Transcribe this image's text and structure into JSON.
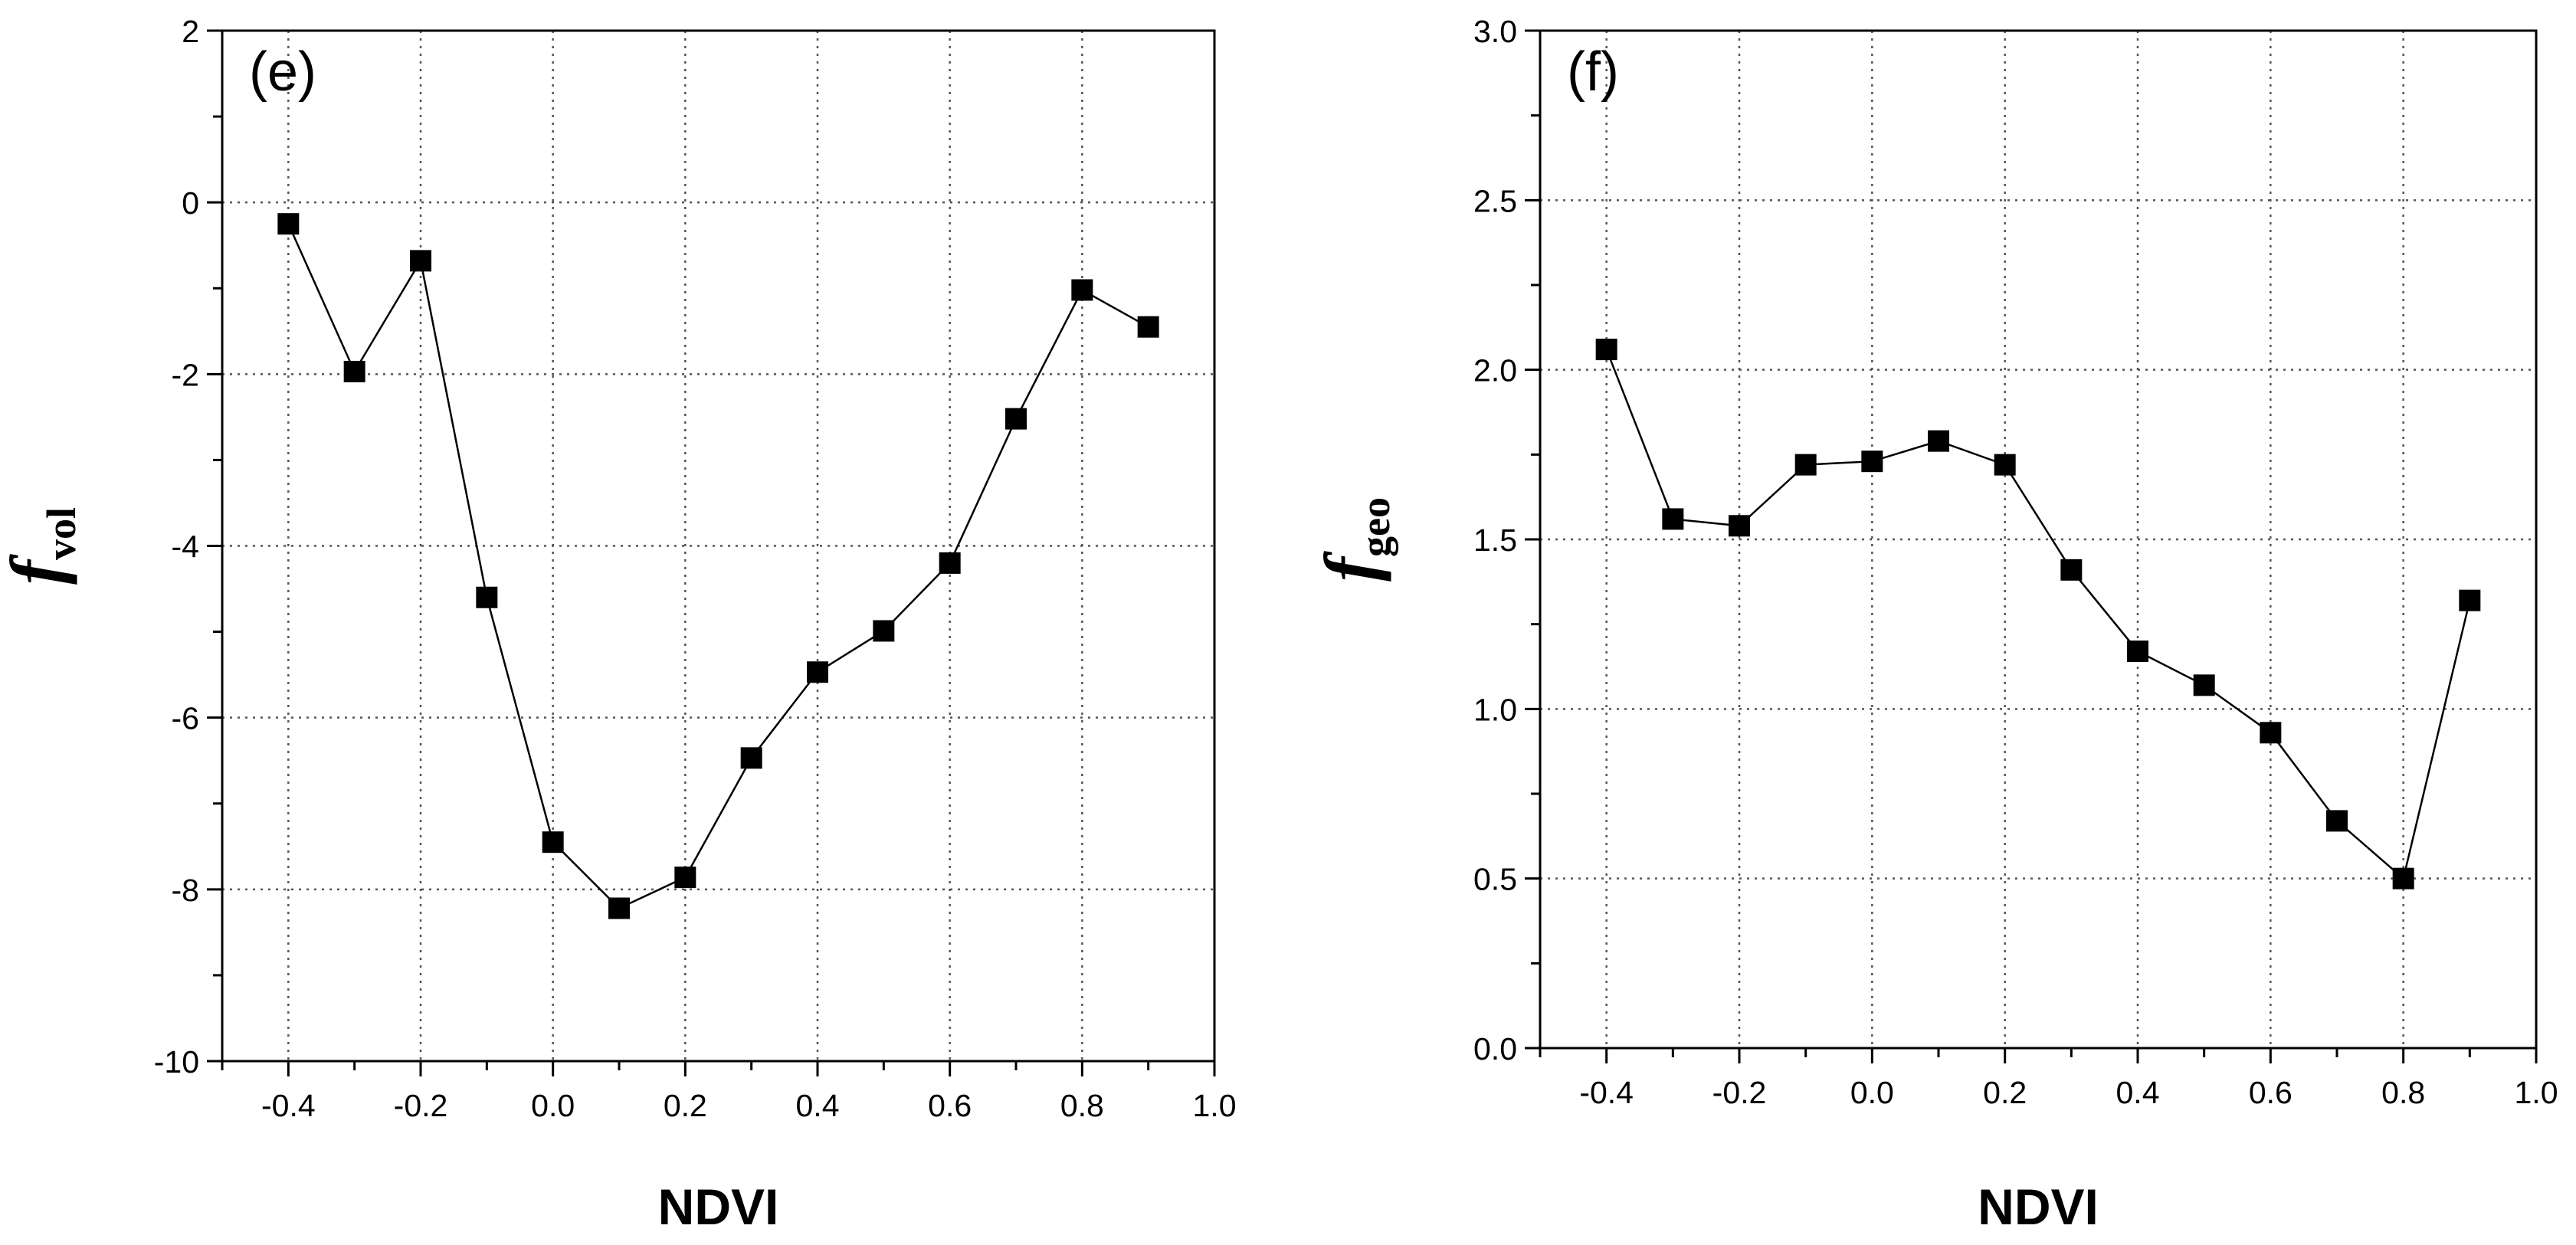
{
  "chart_data": [
    {
      "type": "line",
      "panel_label": "(e)",
      "xlabel": "NDVI",
      "ylabel": "f",
      "ylabel_sub": "vol",
      "xlim": [
        -0.5,
        1.0
      ],
      "ylim": [
        -10,
        2
      ],
      "xticks": [
        -0.4,
        -0.2,
        0.0,
        0.2,
        0.4,
        0.6,
        0.8,
        1.0
      ],
      "xtick_labels": [
        "-0.4",
        "-0.2",
        "0.0",
        "0.2",
        "0.4",
        "0.6",
        "0.8",
        "1.0"
      ],
      "yticks": [
        -10,
        -8,
        -6,
        -4,
        -2,
        0,
        2
      ],
      "ytick_labels": [
        "-10",
        "-8",
        "-6",
        "-4",
        "-2",
        "0",
        "2"
      ],
      "grid": true,
      "series": [
        {
          "name": "f_vol",
          "x": [
            -0.4,
            -0.3,
            -0.2,
            -0.1,
            0.0,
            0.1,
            0.2,
            0.3,
            0.4,
            0.5,
            0.6,
            0.7,
            0.8,
            0.9
          ],
          "y": [
            -0.25,
            -1.97,
            -0.68,
            -4.6,
            -7.45,
            -8.22,
            -7.86,
            -6.47,
            -5.47,
            -4.99,
            -4.2,
            -2.52,
            -1.02,
            -1.45
          ]
        }
      ]
    },
    {
      "type": "line",
      "panel_label": "(f)",
      "xlabel": "NDVI",
      "ylabel": "f",
      "ylabel_sub": "geo",
      "xlim": [
        -0.5,
        1.0
      ],
      "ylim": [
        0.0,
        3.0
      ],
      "xticks": [
        -0.4,
        -0.2,
        0.0,
        0.2,
        0.4,
        0.6,
        0.8,
        1.0
      ],
      "xtick_labels": [
        "-0.4",
        "-0.2",
        "0.0",
        "0.2",
        "0.4",
        "0.6",
        "0.8",
        "1.0"
      ],
      "yticks": [
        0.0,
        0.5,
        1.0,
        1.5,
        2.0,
        2.5,
        3.0
      ],
      "ytick_labels": [
        "0.0",
        "0.5",
        "1.0",
        "1.5",
        "2.0",
        "2.5",
        "3.0"
      ],
      "grid": true,
      "series": [
        {
          "name": "f_geo",
          "x": [
            -0.4,
            -0.3,
            -0.2,
            -0.1,
            0.0,
            0.1,
            0.2,
            0.3,
            0.4,
            0.5,
            0.6,
            0.7,
            0.8,
            0.9
          ],
          "y": [
            2.06,
            1.56,
            1.54,
            1.72,
            1.73,
            1.79,
            1.72,
            1.41,
            1.17,
            1.07,
            0.93,
            0.67,
            0.5,
            1.32
          ]
        }
      ]
    }
  ]
}
